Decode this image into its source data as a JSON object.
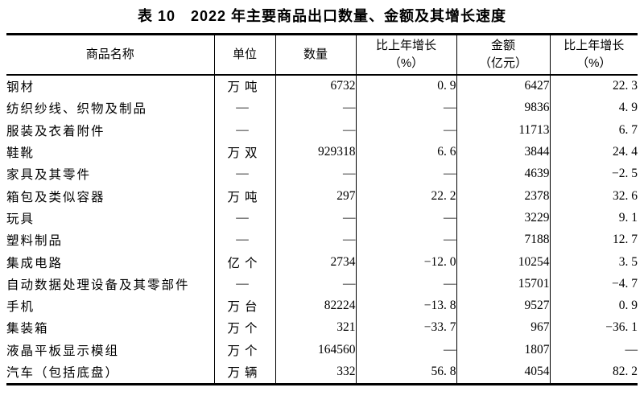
{
  "title": "表 10　2022 年主要商品出口数量、金额及其增长速度",
  "colors": {
    "text": "#000000",
    "background": "#ffffff",
    "border": "#000000"
  },
  "table": {
    "headers": [
      {
        "label": "商品名称"
      },
      {
        "label": "单位"
      },
      {
        "label": "数量"
      },
      {
        "label": "比上年增长",
        "sub": "（%）"
      },
      {
        "label": "金额",
        "sub": "（亿元）"
      },
      {
        "label": "比上年增长",
        "sub": "（%）"
      }
    ],
    "rows": [
      {
        "name": "钢材",
        "unit": "万吨",
        "quantity": "6732",
        "quantity_growth": "0. 9",
        "amount": "6427",
        "amount_growth": "22. 3"
      },
      {
        "name": "纺织纱线、织物及制品",
        "unit": "—",
        "quantity": "—",
        "quantity_growth": "—",
        "amount": "9836",
        "amount_growth": "4. 9"
      },
      {
        "name": "服装及衣着附件",
        "unit": "—",
        "quantity": "—",
        "quantity_growth": "—",
        "amount": "11713",
        "amount_growth": "6. 7"
      },
      {
        "name": "鞋靴",
        "unit": "万双",
        "quantity": "929318",
        "quantity_growth": "6. 6",
        "amount": "3844",
        "amount_growth": "24. 4"
      },
      {
        "name": "家具及其零件",
        "unit": "—",
        "quantity": "—",
        "quantity_growth": "—",
        "amount": "4639",
        "amount_growth": "−2. 5"
      },
      {
        "name": "箱包及类似容器",
        "unit": "万吨",
        "quantity": "297",
        "quantity_growth": "22. 2",
        "amount": "2378",
        "amount_growth": "32. 6"
      },
      {
        "name": "玩具",
        "unit": "—",
        "quantity": "—",
        "quantity_growth": "—",
        "amount": "3229",
        "amount_growth": "9. 1"
      },
      {
        "name": "塑料制品",
        "unit": "—",
        "quantity": "—",
        "quantity_growth": "—",
        "amount": "7188",
        "amount_growth": "12. 7"
      },
      {
        "name": "集成电路",
        "unit": "亿个",
        "quantity": "2734",
        "quantity_growth": "−12. 0",
        "amount": "10254",
        "amount_growth": "3. 5"
      },
      {
        "name": "自动数据处理设备及其零部件",
        "unit": "—",
        "quantity": "—",
        "quantity_growth": "—",
        "amount": "15701",
        "amount_growth": "−4. 7"
      },
      {
        "name": "手机",
        "unit": "万台",
        "quantity": "82224",
        "quantity_growth": "−13. 8",
        "amount": "9527",
        "amount_growth": "0. 9"
      },
      {
        "name": "集装箱",
        "unit": "万个",
        "quantity": "321",
        "quantity_growth": "−33. 7",
        "amount": "967",
        "amount_growth": "−36. 1"
      },
      {
        "name": "液晶平板显示模组",
        "unit": "万个",
        "quantity": "164560",
        "quantity_growth": "—",
        "amount": "1807",
        "amount_growth": "—"
      },
      {
        "name": "汽车（包括底盘）",
        "unit": "万辆",
        "quantity": "332",
        "quantity_growth": "56. 8",
        "amount": "4054",
        "amount_growth": "82. 2"
      }
    ]
  }
}
